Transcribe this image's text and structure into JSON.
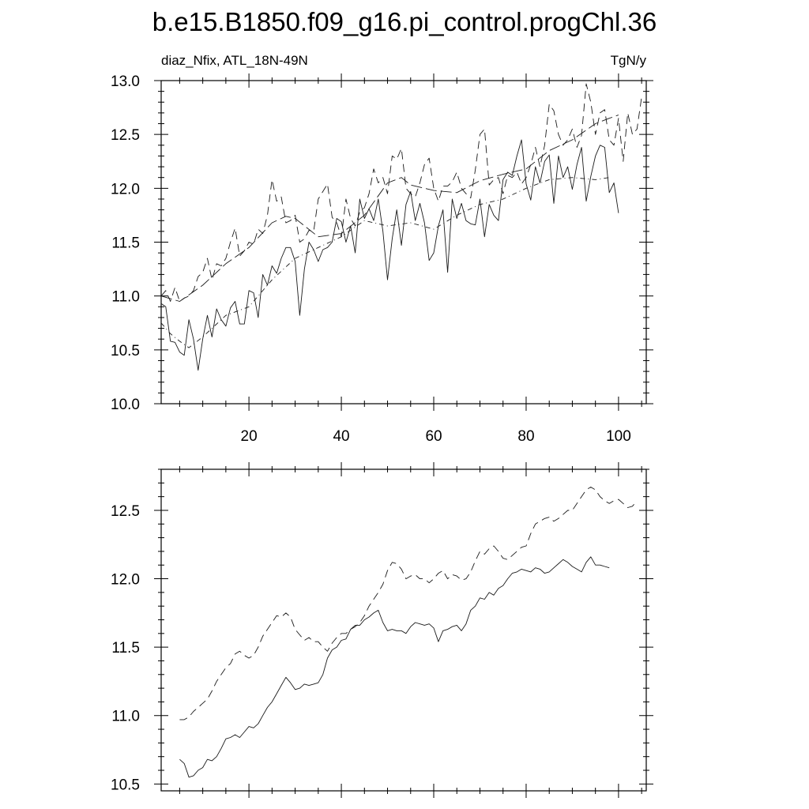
{
  "title": "b.e15.B1850.f09_g16.pi_control.progChl.36",
  "chart_data": [
    {
      "type": "line",
      "panel": "top",
      "left_label": "diaz_Nfix, ATL_18N-49N",
      "right_label": "TgN/y",
      "xlim": [
        1,
        106
      ],
      "ylim": [
        10.0,
        13.0
      ],
      "x_ticks": [
        20,
        40,
        60,
        80,
        100
      ],
      "y_ticks": [
        10.0,
        10.5,
        11.0,
        11.5,
        12.0,
        12.5,
        13.0
      ],
      "y_tick_labels": [
        "10.0",
        "10.5",
        "11.0",
        "11.5",
        "12.0",
        "12.5",
        "13.0"
      ],
      "grid": false,
      "series": [
        {
          "name": "solid",
          "dash": "solid",
          "x": [
            1,
            2,
            3,
            4,
            5,
            6,
            7,
            8,
            9,
            10,
            11,
            12,
            13,
            14,
            15,
            16,
            17,
            18,
            19,
            20,
            21,
            22,
            23,
            24,
            25,
            26,
            27,
            28,
            29,
            30,
            31,
            32,
            33,
            34,
            35,
            36,
            37,
            38,
            39,
            40,
            41,
            42,
            43,
            44,
            45,
            46,
            47,
            48,
            49,
            50,
            51,
            52,
            53,
            54,
            55,
            56,
            57,
            58,
            59,
            60,
            61,
            62,
            63,
            64,
            65,
            66,
            67,
            68,
            69,
            70,
            71,
            72,
            73,
            74,
            75,
            76,
            77,
            78,
            79,
            80,
            81,
            82,
            83,
            84,
            85,
            86,
            87,
            88,
            89,
            90,
            91,
            92,
            93,
            94,
            95,
            96,
            97,
            98,
            99,
            100
          ],
          "y": [
            10.93,
            10.9,
            10.58,
            10.57,
            10.48,
            10.45,
            10.78,
            10.6,
            10.31,
            10.6,
            10.82,
            10.62,
            10.88,
            10.78,
            10.72,
            10.89,
            10.95,
            10.74,
            10.74,
            11.05,
            11.03,
            10.8,
            11.2,
            11.1,
            11.28,
            11.21,
            11.35,
            11.45,
            11.45,
            11.32,
            10.82,
            11.25,
            11.5,
            11.43,
            11.32,
            11.43,
            11.45,
            11.5,
            11.72,
            11.69,
            11.5,
            11.65,
            11.4,
            11.9,
            11.72,
            11.81,
            11.7,
            11.9,
            11.6,
            11.15,
            11.53,
            11.8,
            11.47,
            11.85,
            11.97,
            11.7,
            11.86,
            11.68,
            11.33,
            11.4,
            11.65,
            11.8,
            11.22,
            11.9,
            11.72,
            11.86,
            11.7,
            11.67,
            11.66,
            11.9,
            11.55,
            11.85,
            11.75,
            11.7,
            12.08,
            12.15,
            12.12,
            12.3,
            12.45,
            12.04,
            11.89,
            12.2,
            12.05,
            12.25,
            12.31,
            11.86,
            12.3,
            12.1,
            12.2,
            11.99,
            12.22,
            12.38,
            11.88,
            12.11,
            12.3,
            12.4,
            12.38,
            11.96,
            12.05,
            11.77
          ]
        },
        {
          "name": "dashed",
          "dash": "10,6",
          "x": [
            1,
            2,
            3,
            4,
            5,
            6,
            7,
            8,
            9,
            10,
            11,
            12,
            13,
            14,
            15,
            16,
            17,
            18,
            19,
            20,
            21,
            22,
            23,
            24,
            25,
            26,
            27,
            28,
            29,
            30,
            31,
            32,
            33,
            34,
            35,
            36,
            37,
            38,
            39,
            40,
            41,
            42,
            43,
            44,
            45,
            46,
            47,
            48,
            49,
            50,
            51,
            52,
            53,
            54,
            55,
            56,
            57,
            58,
            59,
            60,
            61,
            62,
            63,
            64,
            65,
            66,
            67,
            68,
            69,
            70,
            71,
            72,
            73,
            74,
            75,
            76,
            77,
            78,
            79,
            80,
            81,
            82,
            83,
            84,
            85,
            86,
            87,
            88,
            89,
            90,
            91,
            92,
            93,
            94,
            95,
            96,
            97,
            98,
            99,
            100,
            101,
            102,
            103,
            104,
            105
          ],
          "y": [
            11.0,
            11.05,
            10.95,
            11.08,
            10.95,
            10.98,
            11.0,
            11.05,
            11.18,
            11.22,
            11.35,
            11.15,
            11.3,
            11.28,
            11.35,
            11.5,
            11.63,
            11.37,
            11.42,
            11.5,
            11.48,
            11.62,
            11.58,
            11.75,
            12.08,
            11.88,
            11.92,
            11.68,
            11.7,
            11.75,
            11.5,
            11.53,
            11.61,
            11.6,
            11.9,
            11.97,
            12.04,
            11.73,
            11.68,
            11.55,
            11.9,
            11.72,
            11.65,
            11.78,
            11.82,
            11.95,
            12.18,
            12.05,
            12.1,
            11.95,
            12.3,
            12.27,
            12.37,
            12.0,
            11.95,
            11.92,
            12.05,
            12.22,
            12.28,
            12.0,
            11.88,
            12.02,
            12.02,
            12.06,
            12.15,
            12.0,
            11.95,
            11.91,
            12.17,
            12.5,
            12.55,
            12.03,
            12.08,
            12.1,
            11.95,
            12.12,
            12.1,
            12.15,
            12.04,
            12.1,
            12.22,
            12.38,
            12.2,
            12.4,
            12.78,
            12.72,
            12.5,
            12.4,
            12.45,
            12.55,
            12.38,
            12.49,
            12.97,
            12.8,
            12.5,
            12.7,
            12.73,
            12.45,
            12.4,
            12.65,
            12.25,
            12.7,
            12.5,
            12.55,
            12.85
          ]
        },
        {
          "name": "long-dash",
          "dash": "14,5",
          "x": [
            1,
            5,
            10,
            15,
            20,
            25,
            28,
            30,
            35,
            40,
            45,
            50,
            53,
            55,
            60,
            65,
            70,
            75,
            80,
            85,
            90,
            95,
            98,
            100
          ],
          "y": [
            11.0,
            10.95,
            11.1,
            11.3,
            11.45,
            11.68,
            11.74,
            11.72,
            11.55,
            11.58,
            11.75,
            12.05,
            12.1,
            12.03,
            11.98,
            11.96,
            12.07,
            12.13,
            12.18,
            12.35,
            12.45,
            12.6,
            12.65,
            12.68
          ]
        },
        {
          "name": "dash-dot",
          "dash": "6,4,1,4",
          "x": [
            1,
            3,
            5,
            7,
            10,
            15,
            20,
            25,
            30,
            35,
            40,
            45,
            50,
            55,
            60,
            65,
            70,
            75,
            80,
            85,
            90,
            95,
            98
          ],
          "y": [
            10.75,
            10.65,
            10.58,
            10.52,
            10.62,
            10.82,
            10.9,
            11.15,
            11.35,
            11.45,
            11.55,
            11.7,
            11.65,
            11.68,
            11.62,
            11.75,
            11.85,
            11.9,
            12.0,
            12.08,
            12.1,
            12.08,
            12.1
          ]
        }
      ]
    },
    {
      "type": "line",
      "panel": "bottom",
      "xlim": [
        1,
        106
      ],
      "ylim": [
        10.45,
        12.8
      ],
      "x_ticks": [
        20,
        40,
        60,
        80,
        100
      ],
      "y_ticks": [
        10.5,
        11.0,
        11.5,
        12.0,
        12.5
      ],
      "y_tick_labels": [
        "10.5",
        "11.0",
        "11.5",
        "12.0",
        "12.5"
      ],
      "grid": false,
      "series": [
        {
          "name": "solid",
          "dash": "solid",
          "x": [
            5,
            6,
            7,
            8,
            9,
            10,
            11,
            12,
            13,
            14,
            15,
            16,
            17,
            18,
            19,
            20,
            21,
            22,
            23,
            24,
            25,
            26,
            27,
            28,
            29,
            30,
            31,
            32,
            33,
            34,
            35,
            36,
            37,
            38,
            39,
            40,
            41,
            42,
            43,
            44,
            45,
            46,
            47,
            48,
            49,
            50,
            51,
            52,
            53,
            54,
            55,
            56,
            57,
            58,
            59,
            60,
            61,
            62,
            63,
            64,
            65,
            66,
            67,
            68,
            69,
            70,
            71,
            72,
            73,
            74,
            75,
            76,
            77,
            78,
            79,
            80,
            81,
            82,
            83,
            84,
            85,
            86,
            87,
            88,
            89,
            90,
            91,
            92,
            93,
            94,
            95,
            96,
            97,
            98
          ],
          "y": [
            10.68,
            10.65,
            10.55,
            10.56,
            10.6,
            10.62,
            10.68,
            10.67,
            10.7,
            10.76,
            10.83,
            10.84,
            10.86,
            10.84,
            10.88,
            10.92,
            10.91,
            10.94,
            11.0,
            11.06,
            11.1,
            11.16,
            11.22,
            11.28,
            11.24,
            11.19,
            11.2,
            11.23,
            11.22,
            11.23,
            11.24,
            11.3,
            11.42,
            11.48,
            11.5,
            11.55,
            11.56,
            11.63,
            11.66,
            11.66,
            11.7,
            11.72,
            11.75,
            11.77,
            11.68,
            11.62,
            11.63,
            11.62,
            11.62,
            11.6,
            11.65,
            11.68,
            11.67,
            11.66,
            11.67,
            11.64,
            11.54,
            11.62,
            11.63,
            11.65,
            11.66,
            11.62,
            11.67,
            11.77,
            11.8,
            11.86,
            11.85,
            11.9,
            11.88,
            11.93,
            11.95,
            12.0,
            12.04,
            12.05,
            12.07,
            12.06,
            12.05,
            12.08,
            12.07,
            12.04,
            12.05,
            12.08,
            12.11,
            12.14,
            12.12,
            12.09,
            12.07,
            12.05,
            12.12,
            12.16,
            12.1,
            12.1,
            12.09,
            12.08
          ]
        },
        {
          "name": "dashed",
          "dash": "10,6",
          "x": [
            5,
            6,
            7,
            8,
            9,
            10,
            11,
            12,
            13,
            14,
            15,
            16,
            17,
            18,
            19,
            20,
            21,
            22,
            23,
            24,
            25,
            26,
            27,
            28,
            29,
            30,
            31,
            32,
            33,
            34,
            35,
            36,
            37,
            38,
            39,
            40,
            41,
            42,
            43,
            44,
            45,
            46,
            47,
            48,
            49,
            50,
            51,
            52,
            53,
            54,
            55,
            56,
            57,
            58,
            59,
            60,
            61,
            62,
            63,
            64,
            65,
            66,
            67,
            68,
            69,
            70,
            71,
            72,
            73,
            74,
            75,
            76,
            77,
            78,
            79,
            80,
            81,
            82,
            83,
            84,
            85,
            86,
            87,
            88,
            89,
            90,
            91,
            92,
            93,
            94,
            95,
            96,
            97,
            98,
            99,
            100,
            101,
            102,
            103,
            104
          ],
          "y": [
            10.97,
            10.97,
            10.99,
            11.03,
            11.06,
            11.09,
            11.12,
            11.18,
            11.25,
            11.3,
            11.35,
            11.38,
            11.45,
            11.47,
            11.44,
            11.42,
            11.44,
            11.5,
            11.58,
            11.63,
            11.68,
            11.73,
            11.72,
            11.75,
            11.72,
            11.63,
            11.59,
            11.55,
            11.57,
            11.54,
            11.54,
            11.5,
            11.47,
            11.53,
            11.57,
            11.6,
            11.6,
            11.63,
            11.65,
            11.68,
            11.73,
            11.8,
            11.85,
            11.9,
            11.96,
            12.06,
            12.12,
            12.11,
            12.07,
            12.0,
            12.02,
            12.03,
            12.0,
            12.0,
            11.97,
            12.0,
            12.04,
            12.06,
            12.0,
            12.03,
            12.02,
            11.99,
            12.0,
            12.05,
            12.13,
            12.2,
            12.18,
            12.22,
            12.24,
            12.2,
            12.15,
            12.14,
            12.17,
            12.2,
            12.23,
            12.24,
            12.33,
            12.4,
            12.42,
            12.44,
            12.45,
            12.42,
            12.44,
            12.47,
            12.5,
            12.5,
            12.55,
            12.6,
            12.65,
            12.67,
            12.65,
            12.6,
            12.57,
            12.55,
            12.57,
            12.58,
            12.55,
            12.52,
            12.53,
            12.57
          ]
        }
      ]
    }
  ]
}
